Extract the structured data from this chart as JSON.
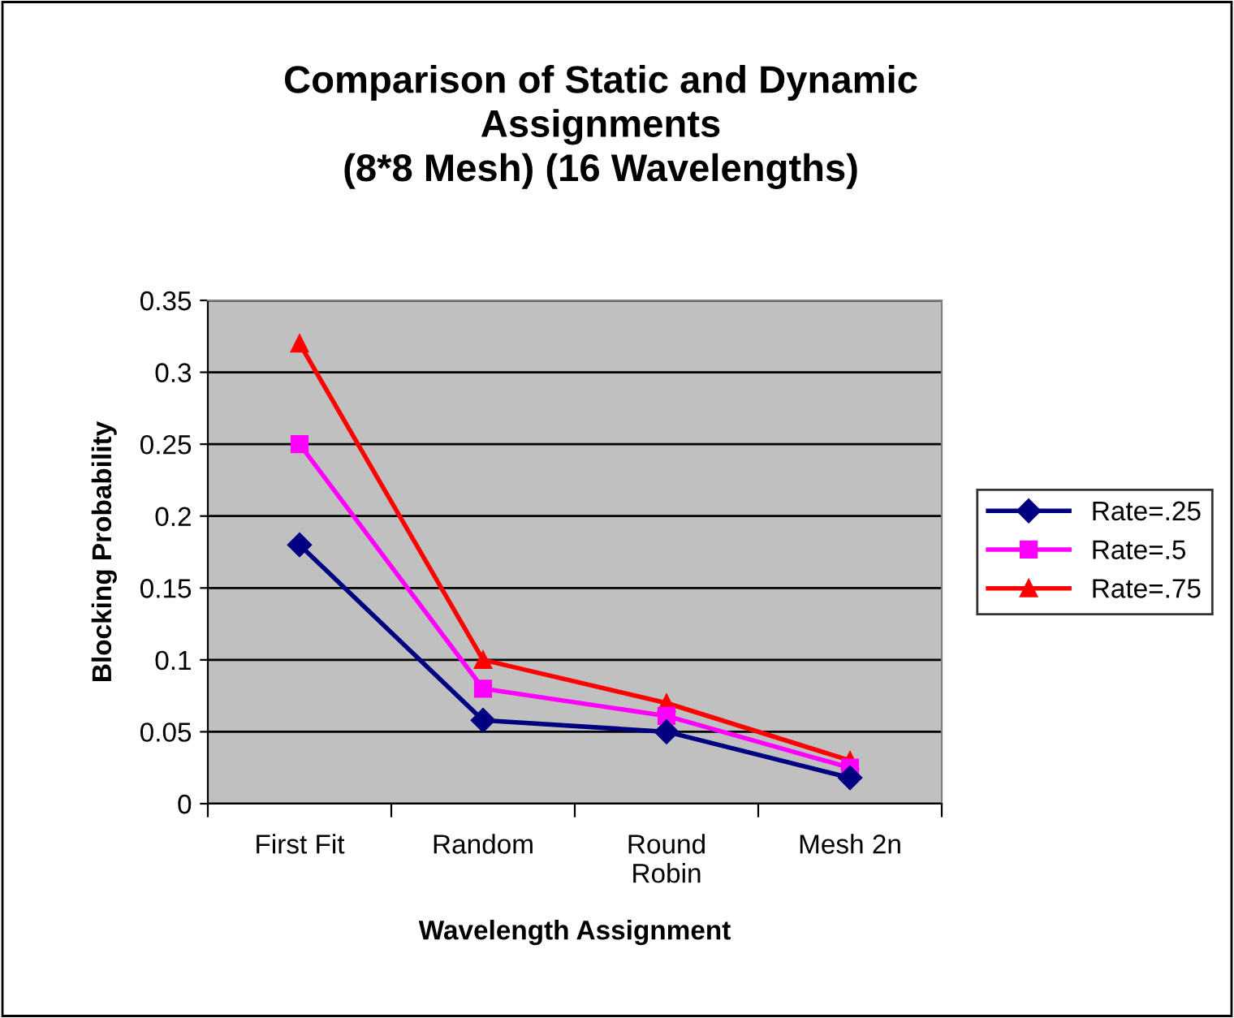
{
  "chart_data": {
    "type": "line",
    "title": "Comparison of Static and Dynamic\nAssignments\n(8*8 Mesh) (16 Wavelengths)",
    "xlabel": "Wavelength Assignment",
    "ylabel": "Blocking Probability",
    "categories": [
      "First Fit",
      "Random",
      "Round Robin",
      "Mesh 2n"
    ],
    "series": [
      {
        "name": "Rate=.25",
        "color": "#000080",
        "marker": "diamond",
        "values": [
          0.18,
          0.058,
          0.05,
          0.018
        ]
      },
      {
        "name": "Rate=.5",
        "color": "#ff00ff",
        "marker": "square",
        "values": [
          0.25,
          0.08,
          0.061,
          0.025
        ]
      },
      {
        "name": "Rate=.75",
        "color": "#ff0000",
        "marker": "triangle",
        "values": [
          0.32,
          0.1,
          0.07,
          0.03
        ]
      }
    ],
    "ylim": [
      0,
      0.35
    ],
    "yticks": [
      0,
      0.05,
      0.1,
      0.15,
      0.2,
      0.25,
      0.3,
      0.35
    ],
    "grid": "y",
    "legend": "right",
    "line_style": "solid"
  }
}
